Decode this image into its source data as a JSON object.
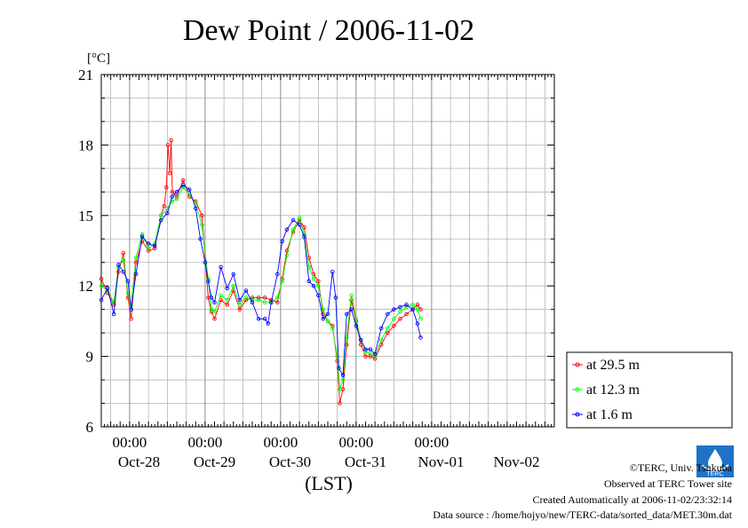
{
  "chart_data": {
    "type": "line",
    "title": "Dew Point / 2006-11-02",
    "ylabel": "[°C]",
    "xlabel": "(LST)",
    "ylim": [
      6,
      21
    ],
    "yticks": [
      6,
      9,
      12,
      15,
      18,
      21
    ],
    "x_unit": "hours since 2006-10-27 15:00 LST",
    "xlim": [
      0,
      144
    ],
    "time_ticks": [
      "00:00",
      "00:00",
      "00:00",
      "00:00",
      "00:00"
    ],
    "time_tick_x": [
      9,
      33,
      57,
      81,
      105
    ],
    "day_labels": [
      "Oct-28",
      "Oct-29",
      "Oct-30",
      "Oct-31",
      "Nov-01",
      "Nov-02"
    ],
    "day_label_x": [
      12,
      36,
      60,
      84,
      108,
      132
    ],
    "grid": true,
    "legend_position": "right",
    "series": [
      {
        "name": "at 29.5 m",
        "color": "#ff0000",
        "points": [
          [
            0,
            12.3
          ],
          [
            2,
            11.7
          ],
          [
            4,
            11.2
          ],
          [
            5.5,
            12.6
          ],
          [
            7,
            13.4
          ],
          [
            8.5,
            11.5
          ],
          [
            9.5,
            10.6
          ],
          [
            11,
            13.0
          ],
          [
            13,
            13.9
          ],
          [
            15,
            13.5
          ],
          [
            17,
            13.6
          ],
          [
            19,
            15.0
          ],
          [
            20,
            15.4
          ],
          [
            20.7,
            16.2
          ],
          [
            21.2,
            18.0
          ],
          [
            21.8,
            16.8
          ],
          [
            22.2,
            18.2
          ],
          [
            22.6,
            16.0
          ],
          [
            24,
            15.8
          ],
          [
            26,
            16.5
          ],
          [
            28,
            15.8
          ],
          [
            30,
            15.6
          ],
          [
            32,
            15.0
          ],
          [
            34,
            11.5
          ],
          [
            35,
            10.9
          ],
          [
            36,
            10.6
          ],
          [
            38,
            11.4
          ],
          [
            40,
            11.2
          ],
          [
            42,
            11.8
          ],
          [
            44,
            11.0
          ],
          [
            46,
            11.4
          ],
          [
            48,
            11.5
          ],
          [
            50,
            11.5
          ],
          [
            52,
            11.5
          ],
          [
            54,
            11.4
          ],
          [
            56,
            11.3
          ],
          [
            57.5,
            12.3
          ],
          [
            59,
            13.5
          ],
          [
            61,
            14.3
          ],
          [
            63,
            14.8
          ],
          [
            64.5,
            14.5
          ],
          [
            66,
            13.2
          ],
          [
            67.5,
            12.5
          ],
          [
            69,
            12.2
          ],
          [
            70.5,
            10.8
          ],
          [
            72,
            10.5
          ],
          [
            73.5,
            10.3
          ],
          [
            75,
            8.8
          ],
          [
            75.8,
            7.0
          ],
          [
            76.8,
            7.6
          ],
          [
            78,
            9.5
          ],
          [
            79.5,
            11.4
          ],
          [
            81,
            10.5
          ],
          [
            82.5,
            9.5
          ],
          [
            84,
            9.0
          ],
          [
            85.5,
            9.0
          ],
          [
            87,
            8.9
          ],
          [
            89,
            9.5
          ],
          [
            91,
            10.0
          ],
          [
            93,
            10.3
          ],
          [
            95,
            10.6
          ],
          [
            97,
            10.8
          ],
          [
            99,
            11.0
          ],
          [
            100.5,
            11.2
          ],
          [
            101.5,
            11.0
          ]
        ]
      },
      {
        "name": "at 12.3 m",
        "color": "#00ff00",
        "points": [
          [
            0,
            12.0
          ],
          [
            2,
            11.8
          ],
          [
            4,
            11.3
          ],
          [
            5.5,
            12.8
          ],
          [
            7,
            13.1
          ],
          [
            8.5,
            11.7
          ],
          [
            9.5,
            11.2
          ],
          [
            11,
            13.2
          ],
          [
            13,
            14.2
          ],
          [
            15,
            13.6
          ],
          [
            17,
            13.8
          ],
          [
            19,
            15.0
          ],
          [
            21,
            15.3
          ],
          [
            22.5,
            15.6
          ],
          [
            24,
            15.7
          ],
          [
            26,
            16.2
          ],
          [
            28,
            15.9
          ],
          [
            30,
            15.5
          ],
          [
            32,
            14.6
          ],
          [
            34,
            12.3
          ],
          [
            35,
            11.0
          ],
          [
            36,
            10.9
          ],
          [
            38,
            11.6
          ],
          [
            40,
            11.4
          ],
          [
            42,
            12.0
          ],
          [
            44,
            11.2
          ],
          [
            46,
            11.5
          ],
          [
            48,
            11.4
          ],
          [
            50,
            11.4
          ],
          [
            52,
            11.3
          ],
          [
            54,
            11.3
          ],
          [
            56,
            11.5
          ],
          [
            57.5,
            12.2
          ],
          [
            59,
            13.3
          ],
          [
            61,
            14.4
          ],
          [
            63,
            14.9
          ],
          [
            64.5,
            14.2
          ],
          [
            66,
            12.8
          ],
          [
            67.5,
            12.3
          ],
          [
            69,
            12.0
          ],
          [
            70.5,
            11.0
          ],
          [
            72,
            10.5
          ],
          [
            73.5,
            10.2
          ],
          [
            75,
            9.0
          ],
          [
            75.8,
            7.6
          ],
          [
            76.8,
            8.0
          ],
          [
            78,
            9.8
          ],
          [
            79.5,
            11.6
          ],
          [
            81,
            10.6
          ],
          [
            82.5,
            9.7
          ],
          [
            84,
            9.2
          ],
          [
            85.5,
            9.1
          ],
          [
            87,
            9.0
          ],
          [
            89,
            9.7
          ],
          [
            91,
            10.2
          ],
          [
            93,
            10.6
          ],
          [
            95,
            10.9
          ],
          [
            97,
            11.1
          ],
          [
            99,
            11.2
          ],
          [
            100.5,
            11.0
          ],
          [
            101.5,
            10.6
          ]
        ]
      },
      {
        "name": "at 1.6 m",
        "color": "#0000ff",
        "points": [
          [
            0,
            11.4
          ],
          [
            2,
            11.9
          ],
          [
            4,
            10.8
          ],
          [
            5.5,
            12.9
          ],
          [
            7,
            12.6
          ],
          [
            8.5,
            12.2
          ],
          [
            9.5,
            11.0
          ],
          [
            11,
            12.5
          ],
          [
            13,
            14.1
          ],
          [
            15,
            13.8
          ],
          [
            17,
            13.7
          ],
          [
            19,
            14.8
          ],
          [
            21,
            15.1
          ],
          [
            22.5,
            15.8
          ],
          [
            24,
            16.0
          ],
          [
            26,
            16.3
          ],
          [
            28,
            16.1
          ],
          [
            30,
            15.3
          ],
          [
            31.5,
            14.0
          ],
          [
            33,
            13.0
          ],
          [
            34,
            12.2
          ],
          [
            35,
            11.5
          ],
          [
            36,
            11.3
          ],
          [
            38,
            12.8
          ],
          [
            40,
            11.9
          ],
          [
            42,
            12.5
          ],
          [
            44,
            11.4
          ],
          [
            46,
            11.8
          ],
          [
            48,
            11.3
          ],
          [
            50,
            10.6
          ],
          [
            52,
            10.6
          ],
          [
            53,
            10.4
          ],
          [
            54,
            11.3
          ],
          [
            56,
            12.5
          ],
          [
            57.5,
            13.9
          ],
          [
            59,
            14.4
          ],
          [
            61,
            14.8
          ],
          [
            63,
            14.6
          ],
          [
            64.5,
            14.1
          ],
          [
            66,
            12.2
          ],
          [
            67.5,
            12.0
          ],
          [
            69,
            11.6
          ],
          [
            70.5,
            10.6
          ],
          [
            72,
            10.8
          ],
          [
            73.5,
            12.6
          ],
          [
            74.5,
            11.5
          ],
          [
            75.5,
            8.5
          ],
          [
            76.8,
            8.2
          ],
          [
            78,
            10.8
          ],
          [
            79.5,
            11.0
          ],
          [
            81,
            10.3
          ],
          [
            82.5,
            9.7
          ],
          [
            84,
            9.3
          ],
          [
            85.5,
            9.3
          ],
          [
            87,
            9.1
          ],
          [
            89,
            10.2
          ],
          [
            91,
            10.8
          ],
          [
            93,
            11.0
          ],
          [
            95,
            11.1
          ],
          [
            97,
            11.2
          ],
          [
            99,
            11.0
          ],
          [
            100.5,
            10.4
          ],
          [
            101.5,
            9.8
          ]
        ]
      }
    ]
  },
  "credits": {
    "copyright": "©TERC, Univ. Tsukuba",
    "observed": "Observed at TERC Tower site",
    "created": "Created Automatically at 2006-11-02/23:32:14",
    "source": "Data source : /home/hojyo/new/TERC-data/sorted_data/MET.30m.dat"
  },
  "logo_text": "TERC"
}
